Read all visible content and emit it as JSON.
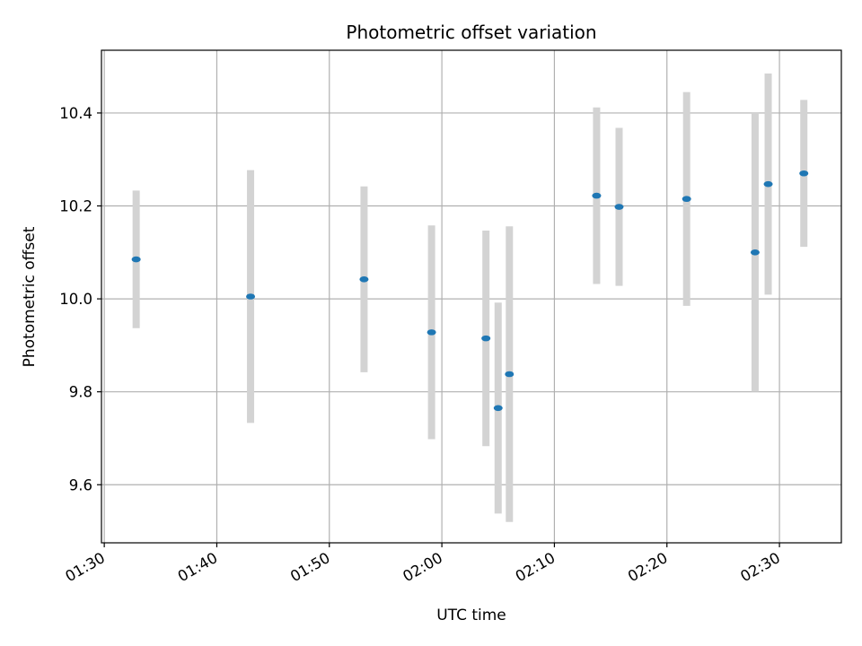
{
  "chart_data": {
    "type": "scatter",
    "title": "Photometric offset variation",
    "xlabel": "UTC time",
    "ylabel": "Photometric offset",
    "x_is_time": true,
    "xlim": [
      "01:29:45",
      "02:35:30"
    ],
    "ylim": [
      9.475,
      10.535
    ],
    "x_ticks": [
      "01:30",
      "01:40",
      "01:50",
      "02:00",
      "02:10",
      "02:20",
      "02:30"
    ],
    "y_ticks": [
      "9.6",
      "9.8",
      "10.0",
      "10.2",
      "10.4"
    ],
    "grid": true,
    "legend": "none",
    "series": [
      {
        "marker_color": "#1f77b4",
        "errorbar_color": "#d3d3d3",
        "points": [
          {
            "x": "01:32:50",
            "y": 10.085,
            "yerr": 0.148
          },
          {
            "x": "01:43:00",
            "y": 10.005,
            "yerr": 0.272
          },
          {
            "x": "01:53:05",
            "y": 10.042,
            "yerr": 0.2
          },
          {
            "x": "01:59:05",
            "y": 9.928,
            "yerr": 0.23
          },
          {
            "x": "02:03:55",
            "y": 9.915,
            "yerr": 0.232
          },
          {
            "x": "02:05:00",
            "y": 9.765,
            "yerr": 0.227
          },
          {
            "x": "02:06:00",
            "y": 9.838,
            "yerr": 0.318
          },
          {
            "x": "02:13:45",
            "y": 10.222,
            "yerr": 0.19
          },
          {
            "x": "02:15:45",
            "y": 10.198,
            "yerr": 0.17
          },
          {
            "x": "02:21:45",
            "y": 10.215,
            "yerr": 0.23
          },
          {
            "x": "02:27:50",
            "y": 10.1,
            "yerr": 0.3
          },
          {
            "x": "02:29:00",
            "y": 10.247,
            "yerr": 0.238
          },
          {
            "x": "02:32:10",
            "y": 10.27,
            "yerr": 0.158
          }
        ]
      }
    ]
  }
}
